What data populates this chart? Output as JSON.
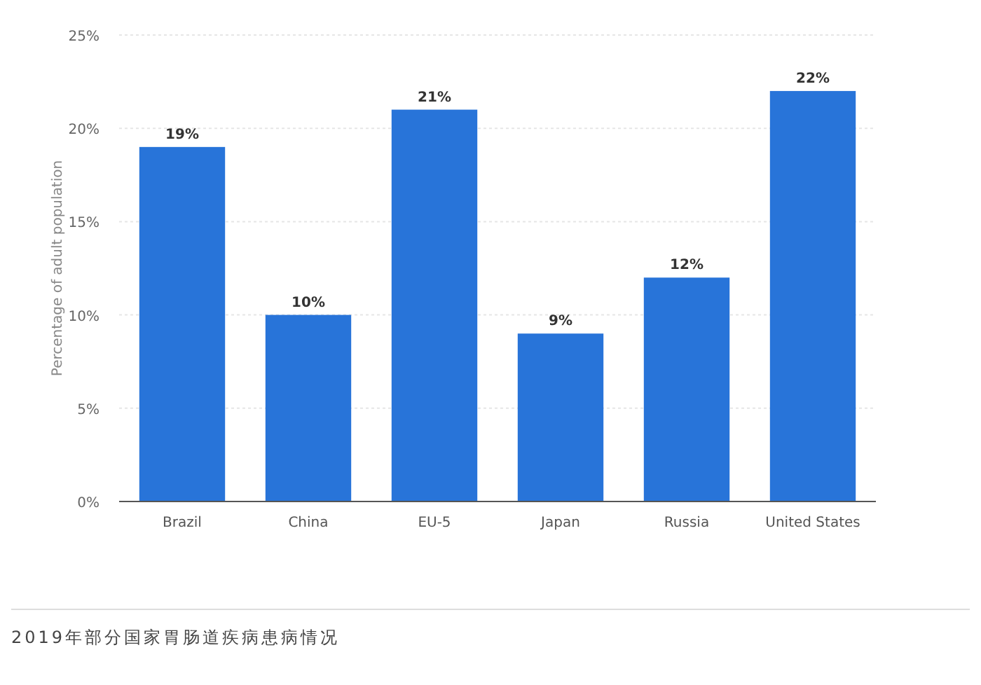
{
  "chart_data": {
    "type": "bar",
    "ylabel": "Percentage of adult population",
    "categories": [
      "Brazil",
      "China",
      "EU-5",
      "Japan",
      "Russia",
      "United States"
    ],
    "values": [
      19,
      10,
      21,
      9,
      12,
      22
    ],
    "color": "#2874d9",
    "value_labels": [
      "19%",
      "10%",
      "21%",
      "9%",
      "12%",
      "22%"
    ],
    "ylim": [
      0,
      25
    ],
    "yticks": [
      {
        "value": 0,
        "label": "0%"
      },
      {
        "value": 5,
        "label": "5%"
      },
      {
        "value": 10,
        "label": "10%"
      },
      {
        "value": 15,
        "label": "15%"
      },
      {
        "value": 20,
        "label": "20%"
      },
      {
        "value": 25,
        "label": "25%"
      }
    ],
    "grid": "y",
    "annotations": [
      "2019年部分国家胃肠道疾病患病情况"
    ]
  }
}
